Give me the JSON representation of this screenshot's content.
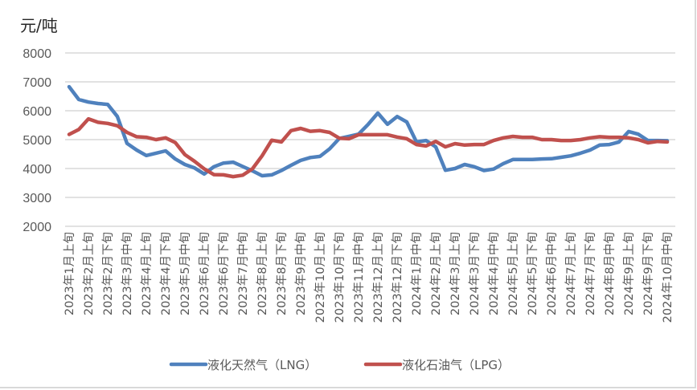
{
  "chart_data": {
    "type": "line",
    "title": "",
    "ylabel": "元/吨",
    "xlabel": "",
    "ylim": [
      2000,
      8000
    ],
    "yticks": [
      2000,
      3000,
      4000,
      5000,
      6000,
      7000,
      8000
    ],
    "grid": true,
    "legend_position": "bottom",
    "x_tick_labels": [
      "2023年1月上旬",
      "2023年2月上旬",
      "2023年2月下旬",
      "2023年3月中旬",
      "2023年4月上旬",
      "2023年4月下旬",
      "2023年5月中旬",
      "2023年6月上旬",
      "2023年6月下旬",
      "2023年7月中旬",
      "2023年8月上旬",
      "2023年8月下旬",
      "2023年9月中旬",
      "2023年10月上旬",
      "2023年10月下旬",
      "2023年11月中旬",
      "2023年12月上旬",
      "2023年12月下旬",
      "2024年1月中旬",
      "2024年2月上旬",
      "2024年3月上旬",
      "2024年3月下旬",
      "2024年4月中旬",
      "2024年5月上旬",
      "2024年5月下旬",
      "2024年6月中旬",
      "2024年7月上旬",
      "2024年7月下旬",
      "2024年8月中旬",
      "2024年9月上旬",
      "2024年9月下旬",
      "2024年10月中旬"
    ],
    "x_tick_every": 2,
    "series": [
      {
        "name": "液化天然气（LNG）",
        "color": "#4f81bd",
        "values": [
          6830,
          6390,
          6300,
          6250,
          6220,
          5800,
          4870,
          4640,
          4450,
          4530,
          4610,
          4330,
          4140,
          4020,
          3810,
          4060,
          4190,
          4220,
          4070,
          3920,
          3750,
          3780,
          3930,
          4110,
          4280,
          4380,
          4420,
          4680,
          5040,
          5110,
          5190,
          5530,
          5920,
          5530,
          5800,
          5610,
          4920,
          4970,
          4750,
          3940,
          4000,
          4140,
          4060,
          3930,
          3980,
          4170,
          4310,
          4310,
          4310,
          4330,
          4340,
          4390,
          4440,
          4530,
          4640,
          4810,
          4830,
          4920,
          5280,
          5190,
          4970,
          4970,
          4960
        ]
      },
      {
        "name": "液化石油气（LPG）",
        "color": "#c0504d",
        "values": [
          5180,
          5350,
          5720,
          5600,
          5560,
          5480,
          5250,
          5100,
          5080,
          5000,
          5060,
          4900,
          4480,
          4250,
          3990,
          3790,
          3780,
          3720,
          3770,
          3990,
          4440,
          4980,
          4920,
          5310,
          5390,
          5290,
          5310,
          5250,
          5050,
          5030,
          5170,
          5170,
          5170,
          5170,
          5090,
          5030,
          4830,
          4780,
          4940,
          4750,
          4860,
          4810,
          4830,
          4830,
          4970,
          5060,
          5110,
          5080,
          5080,
          5000,
          5000,
          4970,
          4970,
          5000,
          5060,
          5100,
          5080,
          5080,
          5060,
          5000,
          4890,
          4940,
          4920
        ]
      }
    ]
  },
  "colors": {
    "gridline": "#d9d9d9",
    "tick_text": "#595959",
    "border": "#d9d9d9"
  }
}
